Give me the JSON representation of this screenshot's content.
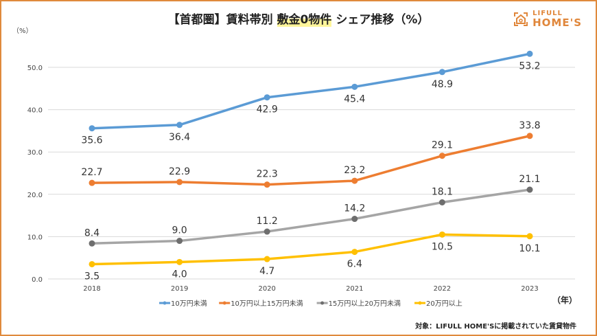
{
  "title": {
    "prefix": "【首都圏】賃料帯別 ",
    "highlight": "敷金0物件",
    "suffix": " シェア推移（%）"
  },
  "logo": {
    "line1": "LIFULL",
    "line2": "HOME'S"
  },
  "note": "対象：LIFULL HOME'Sに掲載されていた賃貸物件",
  "chart_data": {
    "type": "line",
    "title": "【首都圏】賃料帯別 敷金0物件 シェア推移（%）",
    "xlabel": "（年）",
    "ylabel": "（%）",
    "ylim": [
      0,
      50
    ],
    "yticks": [
      "0.0",
      "10.0",
      "20.0",
      "30.0",
      "40.0",
      "50.0"
    ],
    "grid": true,
    "legend": "bottom",
    "categories": [
      "2018",
      "2019",
      "2020",
      "2021",
      "2022",
      "2023"
    ],
    "series": [
      {
        "name": "10万円未満",
        "color": "#5b9bd5",
        "marker": "#5b9bd5",
        "values": [
          35.6,
          36.4,
          42.9,
          45.4,
          48.9,
          53.2
        ],
        "labels": [
          "35.6",
          "36.4",
          "42.9",
          "45.4",
          "48.9",
          "53.2"
        ],
        "label_pos": "below"
      },
      {
        "name": "10万円以上15万円未満",
        "color": "#ed7d31",
        "marker": "#ed7d31",
        "values": [
          22.7,
          22.9,
          22.3,
          23.2,
          29.1,
          33.8
        ],
        "labels": [
          "22.7",
          "22.9",
          "22.3",
          "23.2",
          "29.1",
          "33.8"
        ],
        "label_pos": "above"
      },
      {
        "name": "15万円以上20万円未満",
        "color": "#a5a5a5",
        "marker": "#6e6e6e",
        "values": [
          8.4,
          9.0,
          11.2,
          14.2,
          18.1,
          21.1
        ],
        "labels": [
          "8.4",
          "9.0",
          "11.2",
          "14.2",
          "18.1",
          "21.1"
        ],
        "label_pos": "above"
      },
      {
        "name": "20万円以上",
        "color": "#ffc000",
        "marker": "#ffc000",
        "values": [
          3.5,
          4.0,
          4.7,
          6.4,
          10.5,
          10.1
        ],
        "labels": [
          "3.5",
          "4.0",
          "4.7",
          "6.4",
          "10.5",
          "10.1"
        ],
        "label_pos": "below"
      }
    ]
  }
}
